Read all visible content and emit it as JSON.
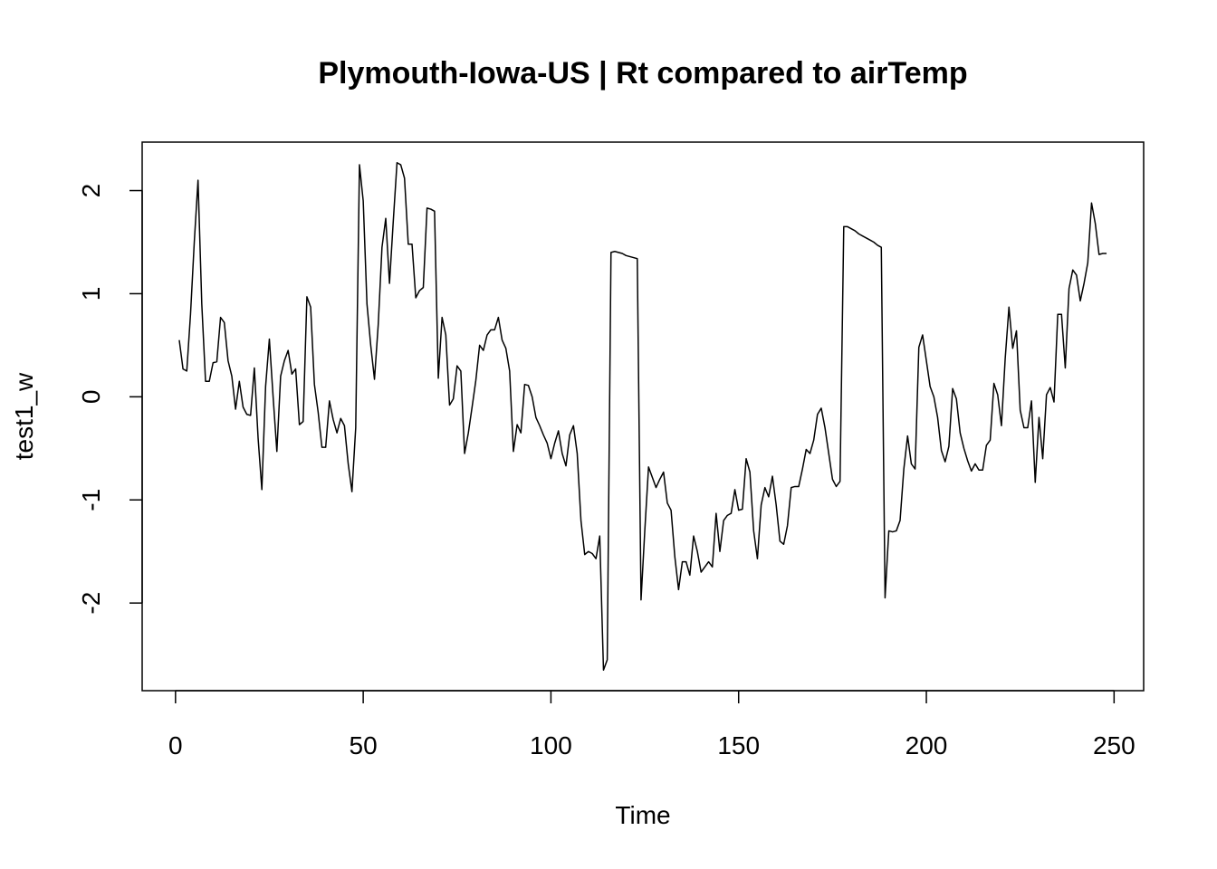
{
  "chart_data": {
    "type": "line",
    "title": "Plymouth-Iowa-US | Rt compared to airTemp",
    "x_label": "Time",
    "y_label": "test1_w",
    "x": [
      1,
      2,
      3,
      4,
      5,
      6,
      7,
      8,
      9,
      10,
      11,
      12,
      13,
      14,
      15,
      16,
      17,
      18,
      19,
      20,
      21,
      22,
      23,
      24,
      25,
      26,
      27,
      28,
      29,
      30,
      31,
      32,
      33,
      34,
      35,
      36,
      37,
      38,
      39,
      40,
      41,
      42,
      43,
      44,
      45,
      46,
      47,
      48,
      49,
      50,
      51,
      52,
      53,
      54,
      55,
      56,
      57,
      58,
      59,
      60,
      61,
      62,
      63,
      64,
      65,
      66,
      67,
      68,
      69,
      70,
      71,
      72,
      73,
      74,
      75,
      76,
      77,
      78,
      79,
      80,
      81,
      82,
      83,
      84,
      85,
      86,
      87,
      88,
      89,
      90,
      91,
      92,
      93,
      94,
      95,
      96,
      97,
      98,
      99,
      100,
      101,
      102,
      103,
      104,
      105,
      106,
      107,
      108,
      109,
      110,
      111,
      112,
      113,
      114,
      115,
      116,
      117,
      118,
      119,
      120,
      121,
      122,
      123,
      124,
      125,
      126,
      127,
      128,
      129,
      130,
      131,
      132,
      133,
      134,
      135,
      136,
      137,
      138,
      139,
      140,
      141,
      142,
      143,
      144,
      145,
      146,
      147,
      148,
      149,
      150,
      151,
      152,
      153,
      154,
      155,
      156,
      157,
      158,
      159,
      160,
      161,
      162,
      163,
      164,
      165,
      166,
      167,
      168,
      169,
      170,
      171,
      172,
      173,
      174,
      175,
      176,
      177,
      178,
      179,
      180,
      181,
      182,
      183,
      184,
      185,
      186,
      187,
      188,
      189,
      190,
      191,
      192,
      193,
      194,
      195,
      196,
      197,
      198,
      199,
      200,
      201,
      202,
      203,
      204,
      205,
      206,
      207,
      208,
      209,
      210,
      211,
      212,
      213,
      214,
      215,
      216,
      217,
      218,
      219,
      220,
      221,
      222,
      223,
      224,
      225,
      226,
      227,
      228,
      229,
      230,
      231,
      232,
      233,
      234,
      235,
      236,
      237,
      238,
      239,
      240,
      241,
      242,
      243,
      244,
      245,
      246,
      247,
      248
    ],
    "series": [
      {
        "name": "test1_w",
        "color": "#000000",
        "values": [
          0.55,
          0.27,
          0.25,
          0.8,
          1.5,
          2.1,
          0.9,
          0.15,
          0.15,
          0.33,
          0.34,
          0.77,
          0.72,
          0.35,
          0.2,
          -0.12,
          0.15,
          -0.1,
          -0.17,
          -0.18,
          0.28,
          -0.4,
          -0.9,
          0.1,
          0.56,
          0.0,
          -0.53,
          0.2,
          0.35,
          0.45,
          0.22,
          0.27,
          -0.27,
          -0.24,
          0.97,
          0.87,
          0.12,
          -0.15,
          -0.49,
          -0.49,
          -0.04,
          -0.22,
          -0.35,
          -0.21,
          -0.28,
          -0.65,
          -0.92,
          -0.3,
          2.25,
          1.9,
          0.9,
          0.5,
          0.17,
          0.7,
          1.45,
          1.73,
          1.1,
          1.7,
          2.27,
          2.25,
          2.12,
          1.48,
          1.48,
          0.96,
          1.03,
          1.06,
          1.83,
          1.82,
          1.8,
          0.18,
          0.77,
          0.6,
          -0.08,
          -0.02,
          0.3,
          0.25,
          -0.55,
          -0.35,
          -0.1,
          0.16,
          0.5,
          0.45,
          0.6,
          0.65,
          0.65,
          0.77,
          0.55,
          0.47,
          0.25,
          -0.53,
          -0.27,
          -0.35,
          0.12,
          0.11,
          0.0,
          -0.2,
          -0.28,
          -0.37,
          -0.45,
          -0.6,
          -0.45,
          -0.33,
          -0.55,
          -0.67,
          -0.37,
          -0.28,
          -0.55,
          -1.2,
          -1.53,
          -1.5,
          -1.52,
          -1.57,
          -1.35,
          -2.65,
          -2.55,
          1.4,
          1.41,
          1.4,
          1.39,
          1.37,
          1.36,
          1.35,
          1.34,
          -1.97,
          -1.3,
          -0.68,
          -0.78,
          -0.88,
          -0.8,
          -0.73,
          -1.03,
          -1.1,
          -1.55,
          -1.87,
          -1.6,
          -1.6,
          -1.73,
          -1.35,
          -1.5,
          -1.7,
          -1.65,
          -1.6,
          -1.65,
          -1.13,
          -1.5,
          -1.2,
          -1.15,
          -1.13,
          -0.9,
          -1.1,
          -1.09,
          -0.6,
          -0.73,
          -1.3,
          -1.57,
          -1.05,
          -0.88,
          -0.97,
          -0.77,
          -1.05,
          -1.4,
          -1.43,
          -1.25,
          -0.88,
          -0.87,
          -0.87,
          -0.7,
          -0.51,
          -0.55,
          -0.42,
          -0.17,
          -0.11,
          -0.3,
          -0.55,
          -0.8,
          -0.87,
          -0.82,
          1.65,
          1.65,
          1.63,
          1.61,
          1.58,
          1.56,
          1.54,
          1.52,
          1.5,
          1.47,
          1.45,
          -1.95,
          -1.3,
          -1.31,
          -1.3,
          -1.2,
          -0.7,
          -0.38,
          -0.65,
          -0.7,
          0.48,
          0.6,
          0.35,
          0.1,
          0.0,
          -0.2,
          -0.52,
          -0.63,
          -0.48,
          0.08,
          -0.02,
          -0.35,
          -0.5,
          -0.62,
          -0.72,
          -0.65,
          -0.71,
          -0.71,
          -0.47,
          -0.42,
          0.13,
          0.02,
          -0.28,
          0.37,
          0.87,
          0.47,
          0.64,
          -0.13,
          -0.3,
          -0.3,
          -0.04,
          -0.83,
          -0.2,
          -0.6,
          0.02,
          0.09,
          -0.05,
          0.8,
          0.8,
          0.28,
          1.05,
          1.23,
          1.18,
          0.93,
          1.1,
          1.3,
          1.88,
          1.68,
          1.38,
          1.39,
          1.39
        ]
      }
    ],
    "xlim": [
      -8.88,
      257.88
    ],
    "ylim": [
      -2.85,
      2.47
    ],
    "xticks": [
      0,
      50,
      100,
      150,
      200,
      250
    ],
    "yticks": [
      -2,
      -1,
      0,
      1,
      2
    ]
  }
}
